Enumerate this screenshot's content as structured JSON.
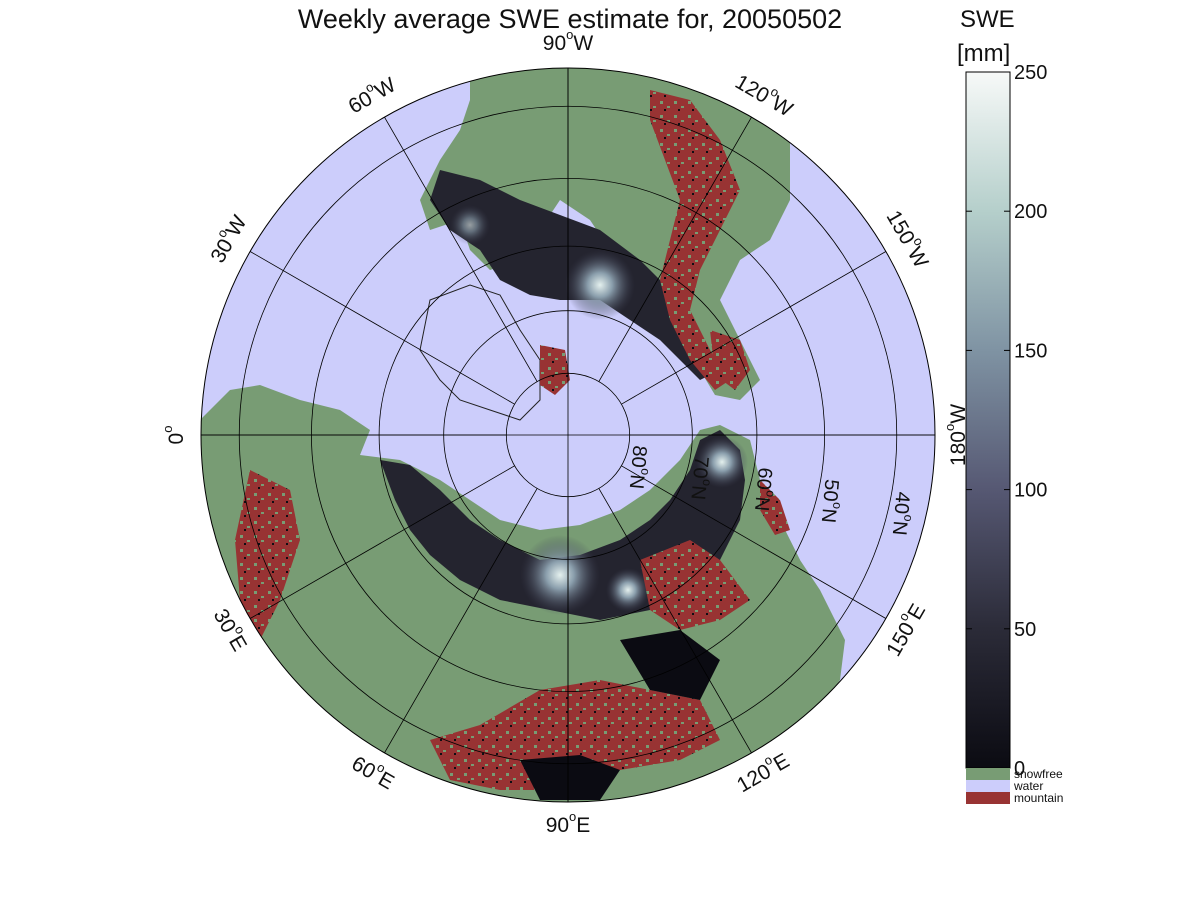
{
  "title": "Weekly average SWE estimate for, 20050502",
  "map": {
    "projection": "north polar stereographic",
    "longitude_labels": [
      {
        "text": "90°W",
        "base": "90",
        "sup": "o",
        "suffix": "W",
        "lon_deg": -90
      },
      {
        "text": "120°W",
        "base": "120",
        "sup": "o",
        "suffix": "W",
        "lon_deg": -120
      },
      {
        "text": "150°W",
        "base": "150",
        "sup": "o",
        "suffix": "W",
        "lon_deg": -150
      },
      {
        "text": "180°W",
        "base": "180",
        "sup": "o",
        "suffix": "W",
        "lon_deg": 180
      },
      {
        "text": "150°E",
        "base": "150",
        "sup": "o",
        "suffix": "E",
        "lon_deg": 150
      },
      {
        "text": "120°E",
        "base": "120",
        "sup": "o",
        "suffix": "E",
        "lon_deg": 120
      },
      {
        "text": "90°E",
        "base": "90",
        "sup": "o",
        "suffix": "E",
        "lon_deg": 90
      },
      {
        "text": "60°E",
        "base": "60",
        "sup": "o",
        "suffix": "E",
        "lon_deg": 60
      },
      {
        "text": "30°E",
        "base": "30",
        "sup": "o",
        "suffix": "E",
        "lon_deg": 30
      },
      {
        "text": "0°",
        "base": "0",
        "sup": "o",
        "suffix": "",
        "lon_deg": 0
      },
      {
        "text": "30°W",
        "base": "30",
        "sup": "o",
        "suffix": "W",
        "lon_deg": -30
      },
      {
        "text": "60°W",
        "base": "60",
        "sup": "o",
        "suffix": "W",
        "lon_deg": -60
      }
    ],
    "latitude_labels": [
      {
        "text": "80°N",
        "base": "80",
        "sup": "o",
        "suffix": "N",
        "lat_deg": 80
      },
      {
        "text": "70°N",
        "base": "70",
        "sup": "o",
        "suffix": "N",
        "lat_deg": 70
      },
      {
        "text": "60°N",
        "base": "60",
        "sup": "o",
        "suffix": "N",
        "lat_deg": 60
      },
      {
        "text": "50°N",
        "base": "50",
        "sup": "o",
        "suffix": "N",
        "lat_deg": 50
      },
      {
        "text": "40°N",
        "base": "40",
        "sup": "o",
        "suffix": "N",
        "lat_deg": 40
      }
    ],
    "graticule": {
      "latitudes": [
        80,
        70,
        60,
        50,
        40
      ],
      "meridian_step_deg": 30
    },
    "colors": {
      "water": "#cccdfb",
      "snowfree": "#789c74",
      "mountain": "#983333",
      "swe_low": "#0b0b12",
      "swe_high": "#f5f8f6"
    }
  },
  "colorbar": {
    "title_line1": "SWE",
    "title_line2": "[mm]",
    "range": [
      0,
      250
    ],
    "ticks": [
      {
        "value": 0,
        "label": "0"
      },
      {
        "value": 50,
        "label": "50"
      },
      {
        "value": 100,
        "label": "100"
      },
      {
        "value": 150,
        "label": "150"
      },
      {
        "value": 200,
        "label": "200"
      },
      {
        "value": 250,
        "label": "250"
      }
    ],
    "categories": [
      {
        "label": "snowfree",
        "color": "#789c74"
      },
      {
        "label": "water",
        "color": "#cccdfb"
      },
      {
        "label": "mountain",
        "color": "#983333"
      }
    ]
  }
}
